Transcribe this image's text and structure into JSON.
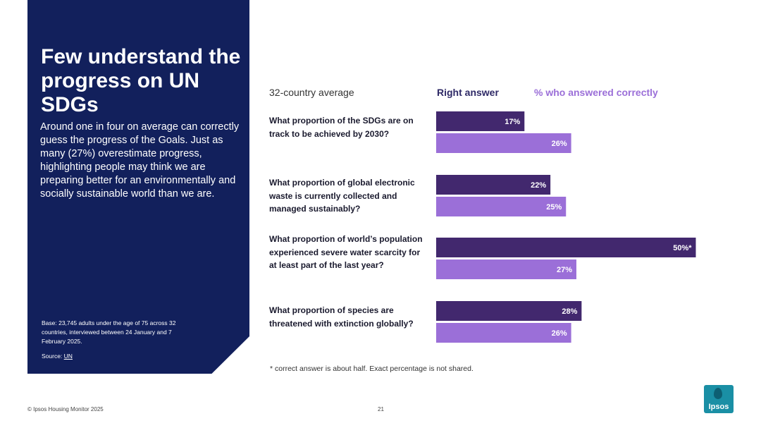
{
  "panel": {
    "title": "Few understand the progress on UN SDGs",
    "lead": "Around one in four on average can correctly guess the progress of the Goals. Just as many (27%) overestimate progress, highlighting people may think we are preparing better for an environmentally and socially sustainable world than we are.",
    "base": "Base: 23,745 adults under the age of 75 across 32 countries, interviewed between 24 January and 7 February 2025.",
    "source_label": "Source: ",
    "source_link": "UN"
  },
  "colors": {
    "panel_bg": "#12205c",
    "right_answer": "#42286e",
    "answered_correctly": "#9b6fd8"
  },
  "chart_data": {
    "type": "bar",
    "orientation": "horizontal",
    "title": "32-country average",
    "categories": [
      "What proportion of the SDGs are on track to be achieved by 2030?",
      "What proportion of global electronic waste is currently collected and managed sustainably?",
      "What proportion of world’s population experienced severe water scarcity for at least part of the last year?",
      "What proportion of species are threatened with extinction globally?"
    ],
    "series": [
      {
        "name": "Right answer",
        "values": [
          17,
          22,
          50,
          28
        ],
        "labels": [
          "17%",
          "22%",
          "50%*",
          "28%"
        ]
      },
      {
        "name": "% who answered correctly",
        "values": [
          26,
          25,
          27,
          26
        ],
        "labels": [
          "26%",
          "25%",
          "27%",
          "26%"
        ]
      }
    ],
    "xlim": [
      0,
      50
    ],
    "legend": "top",
    "footnote": "* correct answer is about half. Exact percentage is not shared."
  },
  "footer": {
    "copyright": "© Ipsos Housing Monitor 2025",
    "page_number": "21",
    "logo_text": "Ipsos"
  }
}
